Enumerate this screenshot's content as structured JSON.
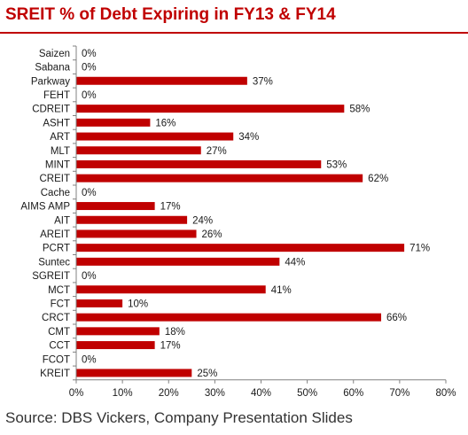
{
  "chart_data": {
    "type": "bar",
    "orientation": "horizontal",
    "title": "SREIT % of Debt Expiring in FY13 & FY14",
    "categories": [
      "Saizen",
      "Sabana",
      "Parkway",
      "FEHT",
      "CDREIT",
      "ASHT",
      "ART",
      "MLT",
      "MINT",
      "CREIT",
      "Cache",
      "AIMS AMP",
      "AIT",
      "AREIT",
      "PCRT",
      "Suntec",
      "SGREIT",
      "MCT",
      "FCT",
      "CRCT",
      "CMT",
      "CCT",
      "FCOT",
      "KREIT"
    ],
    "values": [
      0,
      0,
      37,
      0,
      58,
      16,
      34,
      27,
      53,
      62,
      0,
      17,
      24,
      26,
      71,
      44,
      0,
      41,
      10,
      66,
      18,
      17,
      0,
      25
    ],
    "data_labels": [
      "0%",
      "0%",
      "37%",
      "0%",
      "58%",
      "16%",
      "34%",
      "27%",
      "53%",
      "62%",
      "0%",
      "17%",
      "24%",
      "26%",
      "71%",
      "44%",
      "0%",
      "41%",
      "10%",
      "66%",
      "18%",
      "17%",
      "0%",
      "25%"
    ],
    "xlim": [
      0,
      80
    ],
    "xticks": [
      "0%",
      "10%",
      "20%",
      "30%",
      "40%",
      "50%",
      "60%",
      "70%",
      "80%"
    ],
    "bar_color": "#c00000",
    "grid": false,
    "legend": "none"
  },
  "source": "Source: DBS Vickers, Company Presentation Slides"
}
